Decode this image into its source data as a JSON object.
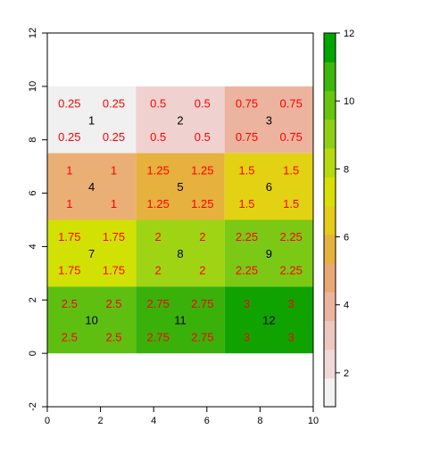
{
  "chart_data": {
    "type": "heatmap",
    "title": "",
    "xlabel": "",
    "ylabel": "",
    "xlim": [
      0,
      10
    ],
    "ylim": [
      -2,
      12
    ],
    "x_ticks": [
      0,
      2,
      4,
      6,
      8,
      10
    ],
    "y_ticks": [
      -2,
      0,
      2,
      4,
      6,
      8,
      10,
      12
    ],
    "grid": false,
    "cell_extent": {
      "x": [
        0,
        10
      ],
      "y": [
        0,
        10
      ]
    },
    "ncol": 3,
    "nrow": 4,
    "cell_ids": [
      [
        1,
        2,
        3
      ],
      [
        4,
        5,
        6
      ],
      [
        7,
        8,
        9
      ],
      [
        10,
        11,
        12
      ]
    ],
    "cell_values": [
      [
        0.25,
        0.5,
        0.75
      ],
      [
        1,
        1.25,
        1.5
      ],
      [
        1.75,
        2,
        2.25
      ],
      [
        2.5,
        2.75,
        3
      ]
    ],
    "cell_value_labels": [
      [
        "0.25",
        "0.5",
        "0.75"
      ],
      [
        "1",
        "1.25",
        "1.5"
      ],
      [
        "1.75",
        "2",
        "2.25"
      ],
      [
        "2.5",
        "2.75",
        "3"
      ]
    ],
    "cell_colors": [
      [
        "#f0f0f0",
        "#efd2d0",
        "#ecb49e"
      ],
      [
        "#e9af74",
        "#e6b13d",
        "#e3d113"
      ],
      [
        "#d2e104",
        "#9fd415",
        "#7bc914"
      ],
      [
        "#5ebf11",
        "#39b10a",
        "#10a300"
      ]
    ],
    "legend": {
      "position": "right",
      "range": [
        1,
        12
      ],
      "ticks": [
        2,
        4,
        6,
        8,
        10,
        12
      ],
      "colors": [
        "#f2f2f2",
        "#f0d9d7",
        "#eec7be",
        "#ecb49e",
        "#e9a774",
        "#e6b13d",
        "#e4cc18",
        "#d9de06",
        "#b6d90f",
        "#8ecf15",
        "#67c411",
        "#3db80a",
        "#00a600"
      ]
    }
  }
}
